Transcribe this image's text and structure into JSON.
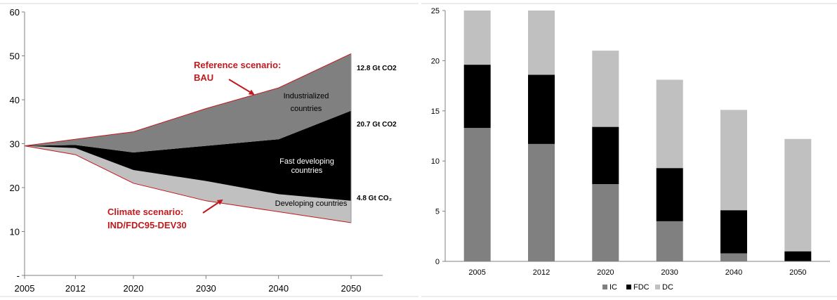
{
  "chart_data": [
    {
      "type": "area",
      "x": [
        2005,
        2012,
        2020,
        2030,
        2040,
        2050
      ],
      "ylim": [
        0,
        60
      ],
      "yticks": [
        "-",
        "10",
        "20",
        "30",
        "40",
        "50",
        "60"
      ],
      "grid": false,
      "series": [
        {
          "name": "Developing countries",
          "color": "#c0c0c0",
          "lower": [
            29.5,
            27.5,
            21,
            17,
            14.5,
            12
          ],
          "upper": [
            29.5,
            29,
            24,
            21.5,
            18.5,
            17
          ]
        },
        {
          "name": "Fast developing countries",
          "color": "#000000",
          "lower": [
            29.5,
            29,
            24,
            21.5,
            18.5,
            17
          ],
          "upper": [
            29.5,
            29.7,
            28,
            29.5,
            31,
            37.5
          ]
        },
        {
          "name": "Industrialized countries",
          "color": "#808080",
          "lower": [
            29.5,
            29.7,
            28,
            29.5,
            31,
            37.5
          ],
          "upper": [
            29.5,
            31,
            32.7,
            38,
            42.7,
            50.5
          ]
        }
      ],
      "bau_line": [
        29.5,
        31,
        32.7,
        38,
        42.7,
        50.5
      ],
      "climate_line": [
        29.5,
        27.5,
        21,
        17,
        14.5,
        12
      ],
      "annotations": {
        "reference_l1": "Reference scenario:",
        "reference_l2": "BAU",
        "climate_l1": "Climate scenario:",
        "climate_l2": "IND/FDC95-DEV30",
        "ic_l1": "Industrialized",
        "ic_l2": "countries",
        "fdc_l1": "Fast developing",
        "fdc_l2": "countries",
        "dc": "Developing countries",
        "gap_ic": "12.8 Gt CO2",
        "gap_fdc": "20.7 Gt CO2",
        "gap_dc": "4.8 Gt CO₂"
      },
      "accent_color": "#c0191e"
    },
    {
      "type": "bar",
      "stacked": true,
      "categories": [
        "2005",
        "2012",
        "2020",
        "2030",
        "2040",
        "2050"
      ],
      "ylim": [
        0,
        25
      ],
      "yticks": [
        "0",
        "5",
        "10",
        "15",
        "20",
        "25"
      ],
      "grid": false,
      "legend": "bottom",
      "series": [
        {
          "name": "IC",
          "color": "#808080",
          "values": [
            13.3,
            11.7,
            7.7,
            4.0,
            0.8,
            0.0
          ]
        },
        {
          "name": "FDC",
          "color": "#000000",
          "values": [
            6.3,
            6.9,
            5.7,
            5.3,
            4.3,
            1.0
          ]
        },
        {
          "name": "DC",
          "color": "#c0c0c0",
          "values": [
            5.4,
            6.4,
            7.6,
            8.8,
            10.0,
            11.2
          ]
        }
      ]
    }
  ]
}
